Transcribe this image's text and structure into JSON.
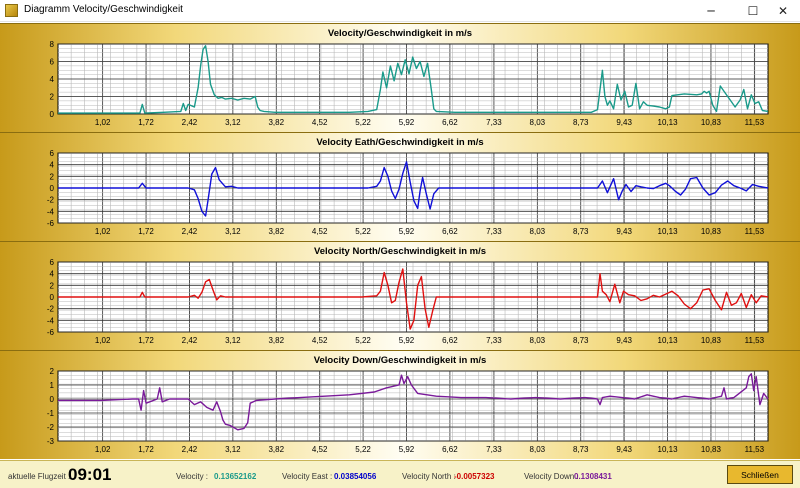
{
  "window": {
    "title": "Diagramm Velocity/Geschwindigkeit",
    "minimize_glyph": "─",
    "maximize_glyph": "☐",
    "close_glyph": "✕"
  },
  "footer": {
    "flight_time_label": "aktuelle Flugzeit :",
    "flight_time_value": "09:01",
    "velocity_label": "Velocity :",
    "velocity_value": "0.13652162",
    "velocity_east_label": "Velocity  East :",
    "velocity_east_value": "0.03854056",
    "velocity_north_label": "Velocity North :",
    "velocity_north_value": "-0.0057323",
    "velocity_down_label": "Velocity Down :",
    "velocity_down_value": "0.1308431",
    "close_button_label": "Schließen"
  },
  "colors": {
    "velocity": "#1a9a8a",
    "east": "#1010d8",
    "north": "#e01010",
    "down": "#7a1a9a",
    "velocity_value": "#1a9a8a",
    "east_value": "#0000cc",
    "north_value": "#cc0000",
    "down_value": "#7a1a9a"
  },
  "chart_data": [
    {
      "type": "line",
      "title": "Velocity/Geschwindigkeit  in m/s",
      "series_color": "#1a9a8a",
      "ylim": [
        0,
        8
      ],
      "yticks": [
        0,
        2,
        4,
        6,
        8
      ],
      "xlim": [
        0.3,
        11.75
      ],
      "x_tick_labels": [
        "1,02",
        "1,72",
        "2,42",
        "3,12",
        "3,82",
        "4,52",
        "5,22",
        "5,92",
        "6,62",
        "7,33",
        "8,03",
        "8,73",
        "9,43",
        "10,13",
        "10,83",
        "11,53"
      ],
      "x_tick_values": [
        1.02,
        1.72,
        2.42,
        3.12,
        3.82,
        4.52,
        5.22,
        5.92,
        6.62,
        7.33,
        8.03,
        8.73,
        9.43,
        10.13,
        10.83,
        11.53
      ],
      "x": [
        0.3,
        1.0,
        1.62,
        1.66,
        1.7,
        2.0,
        2.28,
        2.32,
        2.36,
        2.4,
        2.5,
        2.56,
        2.6,
        2.64,
        2.68,
        2.72,
        2.76,
        2.82,
        2.88,
        2.94,
        3.0,
        3.1,
        3.2,
        3.3,
        3.4,
        3.48,
        3.52,
        3.56,
        3.62,
        3.8,
        4.2,
        4.6,
        5.0,
        5.3,
        5.44,
        5.5,
        5.54,
        5.6,
        5.66,
        5.72,
        5.78,
        5.84,
        5.9,
        5.96,
        6.02,
        6.08,
        6.14,
        6.2,
        6.26,
        6.32,
        6.36,
        6.4,
        6.7,
        7.2,
        7.8,
        8.4,
        8.9,
        9.0,
        9.04,
        9.08,
        9.12,
        9.16,
        9.2,
        9.26,
        9.32,
        9.38,
        9.44,
        9.5,
        9.56,
        9.62,
        9.68,
        9.74,
        9.8,
        9.9,
        10.0,
        10.1,
        10.16,
        10.2,
        10.4,
        10.6,
        10.68,
        10.72,
        10.76,
        10.8,
        10.86,
        10.92,
        10.98,
        11.06,
        11.14,
        11.22,
        11.3,
        11.36,
        11.42,
        11.48,
        11.54,
        11.6,
        11.66,
        11.75
      ],
      "y": [
        0.1,
        0.1,
        0.1,
        1.1,
        0.1,
        0.2,
        0.3,
        1.2,
        0.4,
        1.1,
        0.8,
        3.0,
        5.5,
        7.4,
        7.8,
        6.0,
        3.4,
        2.2,
        1.8,
        1.9,
        1.7,
        1.8,
        1.6,
        1.8,
        1.7,
        2.0,
        0.8,
        0.4,
        0.3,
        0.2,
        0.2,
        0.2,
        0.2,
        0.3,
        0.5,
        2.8,
        4.8,
        3.0,
        5.5,
        3.8,
        5.8,
        4.5,
        6.2,
        4.6,
        6.5,
        5.2,
        6.0,
        4.3,
        5.8,
        2.8,
        0.6,
        0.3,
        0.2,
        0.2,
        0.2,
        0.2,
        0.2,
        0.5,
        2.8,
        5.0,
        2.0,
        1.0,
        1.5,
        0.6,
        3.4,
        1.6,
        2.6,
        0.8,
        1.0,
        3.5,
        0.6,
        1.4,
        1.0,
        0.9,
        0.8,
        0.6,
        0.8,
        2.1,
        2.3,
        2.2,
        2.3,
        2.6,
        2.4,
        2.6,
        1.0,
        0.3,
        3.2,
        2.4,
        1.6,
        0.8,
        1.6,
        2.8,
        0.6,
        2.2,
        1.2,
        1.4,
        0.4,
        0.3
      ]
    },
    {
      "type": "line",
      "title": "Velocity Eath/Geschwindigkeit  in m/s",
      "series_color": "#1010d8",
      "ylim": [
        -6,
        6
      ],
      "yticks": [
        -6,
        -4,
        -2,
        0,
        2,
        4,
        6
      ],
      "xlim": [
        0.3,
        11.75
      ],
      "x_tick_labels": [
        "1,02",
        "1,72",
        "2,42",
        "3,12",
        "3,82",
        "4,52",
        "5,22",
        "5,92",
        "6,62",
        "7,33",
        "8,03",
        "8,73",
        "9,43",
        "10,13",
        "10,83",
        "11,53"
      ],
      "x_tick_values": [
        1.02,
        1.72,
        2.42,
        3.12,
        3.82,
        4.52,
        5.22,
        5.92,
        6.62,
        7.33,
        8.03,
        8.73,
        9.43,
        10.13,
        10.83,
        11.53
      ],
      "x": [
        0.3,
        1.6,
        1.66,
        1.72,
        2.4,
        2.5,
        2.56,
        2.62,
        2.68,
        2.72,
        2.78,
        2.84,
        2.9,
        3.0,
        3.1,
        3.2,
        3.6,
        4.2,
        4.8,
        5.3,
        5.44,
        5.5,
        5.56,
        5.62,
        5.68,
        5.74,
        5.8,
        5.86,
        5.92,
        5.98,
        6.04,
        6.1,
        6.14,
        6.18,
        6.24,
        6.3,
        6.36,
        6.44,
        6.6,
        7.2,
        8.0,
        8.8,
        9.0,
        9.08,
        9.16,
        9.26,
        9.34,
        9.4,
        9.46,
        9.54,
        9.62,
        9.7,
        9.8,
        9.9,
        10.0,
        10.1,
        10.16,
        10.2,
        10.26,
        10.34,
        10.42,
        10.5,
        10.6,
        10.7,
        10.8,
        10.9,
        11.0,
        11.1,
        11.2,
        11.3,
        11.4,
        11.5,
        11.6,
        11.75
      ],
      "y": [
        0,
        0,
        0.8,
        0,
        0,
        -0.3,
        -1.8,
        -4.0,
        -4.8,
        -2.0,
        2.4,
        3.5,
        1.4,
        0.2,
        0.3,
        0,
        0,
        0,
        0,
        0,
        0.3,
        1.2,
        3.5,
        2.0,
        -0.5,
        -1.8,
        -0.2,
        2.5,
        4.5,
        1.0,
        -2.2,
        -3.5,
        -0.5,
        1.8,
        -1.0,
        -3.6,
        -1.0,
        0,
        0,
        0,
        0,
        0,
        0,
        1.2,
        -0.8,
        1.6,
        -2.0,
        -0.5,
        0.6,
        -0.6,
        0.4,
        0.2,
        0,
        -0.1,
        0.4,
        0.8,
        0.4,
        0,
        -0.6,
        -1.2,
        -0.2,
        1.6,
        1.8,
        0,
        -1.2,
        -0.8,
        0.5,
        1.2,
        0.4,
        0,
        -0.5,
        0.6,
        0.3,
        0
      ]
    },
    {
      "type": "line",
      "title": "Velocity North/Geschwindigkeit  in m/s",
      "series_color": "#e01010",
      "ylim": [
        -6,
        6
      ],
      "yticks": [
        -6,
        -4,
        -2,
        0,
        2,
        4,
        6
      ],
      "xlim": [
        0.3,
        11.75
      ],
      "x_tick_labels": [
        "1,02",
        "1,72",
        "2,42",
        "3,12",
        "3,82",
        "4,52",
        "5,22",
        "5,92",
        "6,62",
        "7,33",
        "8,03",
        "8,73",
        "9,43",
        "10,13",
        "10,83",
        "11,53"
      ],
      "x_tick_values": [
        1.02,
        1.72,
        2.42,
        3.12,
        3.82,
        4.52,
        5.22,
        5.92,
        6.62,
        7.33,
        8.03,
        8.73,
        9.43,
        10.13,
        10.83,
        11.53
      ],
      "x": [
        0.3,
        1.62,
        1.66,
        1.7,
        2.4,
        2.5,
        2.56,
        2.62,
        2.68,
        2.74,
        2.8,
        2.86,
        2.92,
        3.0,
        3.6,
        4.4,
        5.2,
        5.44,
        5.5,
        5.56,
        5.62,
        5.68,
        5.74,
        5.8,
        5.86,
        5.92,
        5.98,
        6.04,
        6.1,
        6.16,
        6.22,
        6.28,
        6.34,
        6.4,
        6.6,
        7.4,
        8.2,
        8.8,
        9.0,
        9.04,
        9.08,
        9.14,
        9.2,
        9.28,
        9.36,
        9.42,
        9.5,
        9.6,
        9.7,
        9.8,
        9.9,
        10.0,
        10.1,
        10.2,
        10.3,
        10.4,
        10.5,
        10.6,
        10.7,
        10.8,
        10.9,
        11.0,
        11.08,
        11.16,
        11.24,
        11.32,
        11.4,
        11.48,
        11.56,
        11.64,
        11.75
      ],
      "y": [
        0,
        0,
        0.8,
        0,
        0,
        0.3,
        -0.2,
        0.8,
        2.6,
        3.0,
        1.2,
        -0.5,
        0.2,
        0,
        0,
        0,
        0,
        0.2,
        1.0,
        4.2,
        2.0,
        -1.0,
        -0.6,
        2.5,
        4.8,
        -1.0,
        -5.5,
        -4.0,
        2.0,
        3.5,
        -2.0,
        -5.2,
        -2.5,
        0,
        0,
        0,
        0,
        0,
        0,
        4.0,
        1.0,
        0.4,
        -0.8,
        2.2,
        -1.0,
        1.0,
        0.4,
        0.2,
        -0.6,
        -0.3,
        0.3,
        0,
        0.5,
        1.0,
        0.2,
        -1.2,
        -2.0,
        -1.0,
        1.2,
        1.4,
        -0.6,
        -2.2,
        0.8,
        -1.4,
        -1.0,
        0.6,
        -1.8,
        0.4,
        -1.0,
        0.2,
        0
      ]
    },
    {
      "type": "line",
      "title": "Velocity Down/Geschwindigkeit  in m/s",
      "series_color": "#7a1a9a",
      "ylim": [
        -3,
        2
      ],
      "yticks": [
        -3,
        -2,
        -1,
        0,
        1,
        2
      ],
      "xlim": [
        0.3,
        11.75
      ],
      "x_tick_labels": [
        "1,02",
        "1,72",
        "2,42",
        "3,12",
        "3,82",
        "4,52",
        "5,22",
        "5,92",
        "6,62",
        "7,33",
        "8,03",
        "8,73",
        "9,43",
        "10,13",
        "10,83",
        "11,53"
      ],
      "x_tick_values": [
        1.02,
        1.72,
        2.42,
        3.12,
        3.82,
        4.52,
        5.22,
        5.92,
        6.62,
        7.33,
        8.03,
        8.73,
        9.43,
        10.13,
        10.83,
        11.53
      ],
      "x": [
        0.3,
        1.0,
        1.5,
        1.6,
        1.64,
        1.68,
        1.72,
        1.9,
        1.94,
        1.98,
        2.1,
        2.4,
        2.5,
        2.6,
        2.7,
        2.8,
        2.86,
        2.92,
        2.96,
        3.0,
        3.08,
        3.2,
        3.3,
        3.36,
        3.4,
        3.5,
        3.8,
        4.2,
        4.6,
        5.0,
        5.4,
        5.6,
        5.8,
        5.84,
        5.88,
        5.94,
        6.0,
        6.1,
        6.4,
        6.8,
        7.2,
        7.6,
        8.0,
        8.4,
        8.8,
        9.0,
        9.04,
        9.08,
        9.2,
        9.4,
        9.6,
        9.8,
        10.0,
        10.2,
        10.4,
        10.6,
        10.8,
        11.0,
        11.04,
        11.08,
        11.2,
        11.4,
        11.44,
        11.48,
        11.52,
        11.56,
        11.62,
        11.68,
        11.75
      ],
      "y": [
        -0.1,
        -0.1,
        0,
        0,
        -0.8,
        0.6,
        -0.3,
        0,
        0.8,
        -0.2,
        0,
        0,
        -0.4,
        -0.2,
        -0.6,
        -0.8,
        -0.2,
        -0.9,
        -1.5,
        -1.8,
        -1.9,
        -2.2,
        -2.1,
        -1.7,
        -0.3,
        -0.1,
        0,
        0.1,
        0.2,
        0.3,
        0.5,
        0.8,
        1.0,
        1.7,
        1.1,
        1.6,
        1.0,
        0.4,
        0.2,
        0.1,
        0.1,
        0,
        0.1,
        0,
        0.1,
        0,
        -0.4,
        0.1,
        0.2,
        0.1,
        0,
        0.3,
        0.1,
        0,
        0.2,
        0.1,
        0,
        0.2,
        0.8,
        0,
        0.1,
        0.8,
        1.6,
        1.8,
        0.6,
        1.6,
        -0.4,
        0.4,
        0
      ]
    }
  ]
}
